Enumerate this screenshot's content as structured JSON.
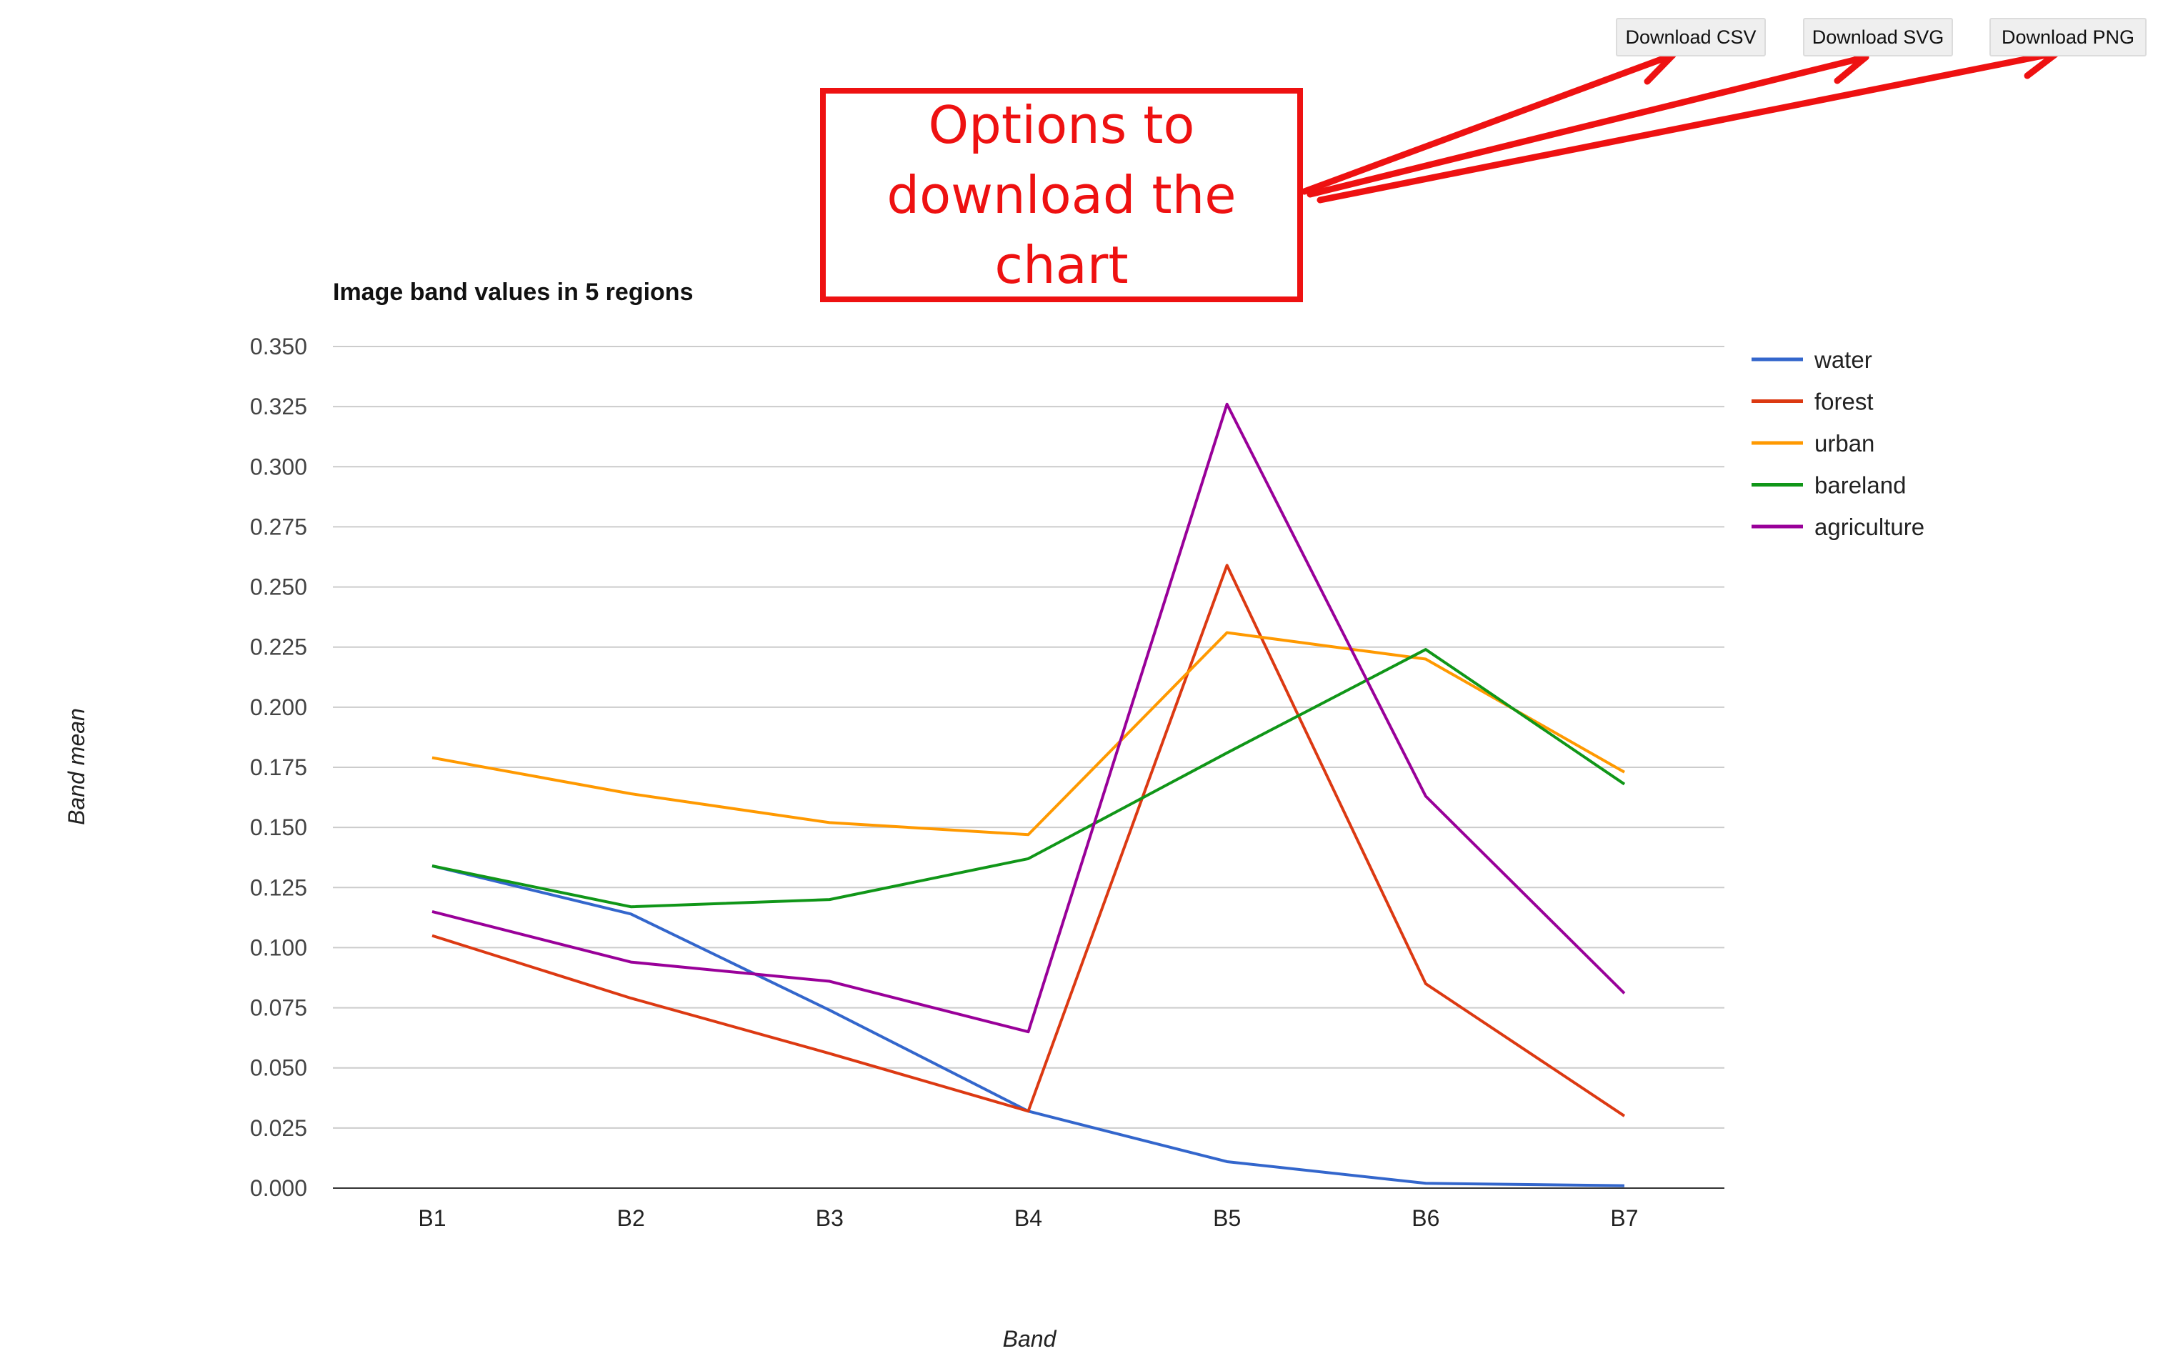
{
  "toolbar": {
    "download_csv_label": "Download CSV",
    "download_svg_label": "Download SVG",
    "download_png_label": "Download PNG"
  },
  "annotation": {
    "line1": "Options to",
    "line2": "download the",
    "line3": "chart",
    "color": "#ee1111"
  },
  "chart_data": {
    "type": "line",
    "title": "Image band values in 5 regions",
    "xlabel": "Band",
    "ylabel": "Band mean",
    "categories": [
      "B1",
      "B2",
      "B3",
      "B4",
      "B5",
      "B6",
      "B7"
    ],
    "ylim": [
      0,
      0.35
    ],
    "yticks": [
      "0.000",
      "0.025",
      "0.050",
      "0.075",
      "0.100",
      "0.125",
      "0.150",
      "0.175",
      "0.200",
      "0.225",
      "0.250",
      "0.275",
      "0.300",
      "0.325",
      "0.350"
    ],
    "grid": true,
    "legend_position": "right",
    "series": [
      {
        "name": "water",
        "color": "#3366cc",
        "values": [
          0.134,
          0.114,
          0.074,
          0.032,
          0.011,
          0.002,
          0.001
        ]
      },
      {
        "name": "forest",
        "color": "#dc3912",
        "values": [
          0.105,
          0.079,
          0.056,
          0.032,
          0.259,
          0.085,
          0.03
        ]
      },
      {
        "name": "urban",
        "color": "#ff9900",
        "values": [
          0.179,
          0.164,
          0.152,
          0.147,
          0.231,
          0.22,
          0.173
        ]
      },
      {
        "name": "bareland",
        "color": "#109618",
        "values": [
          0.134,
          0.117,
          0.12,
          0.137,
          0.181,
          0.224,
          0.168
        ]
      },
      {
        "name": "agriculture",
        "color": "#990099",
        "values": [
          0.115,
          0.094,
          0.086,
          0.065,
          0.326,
          0.163,
          0.081
        ]
      }
    ]
  }
}
